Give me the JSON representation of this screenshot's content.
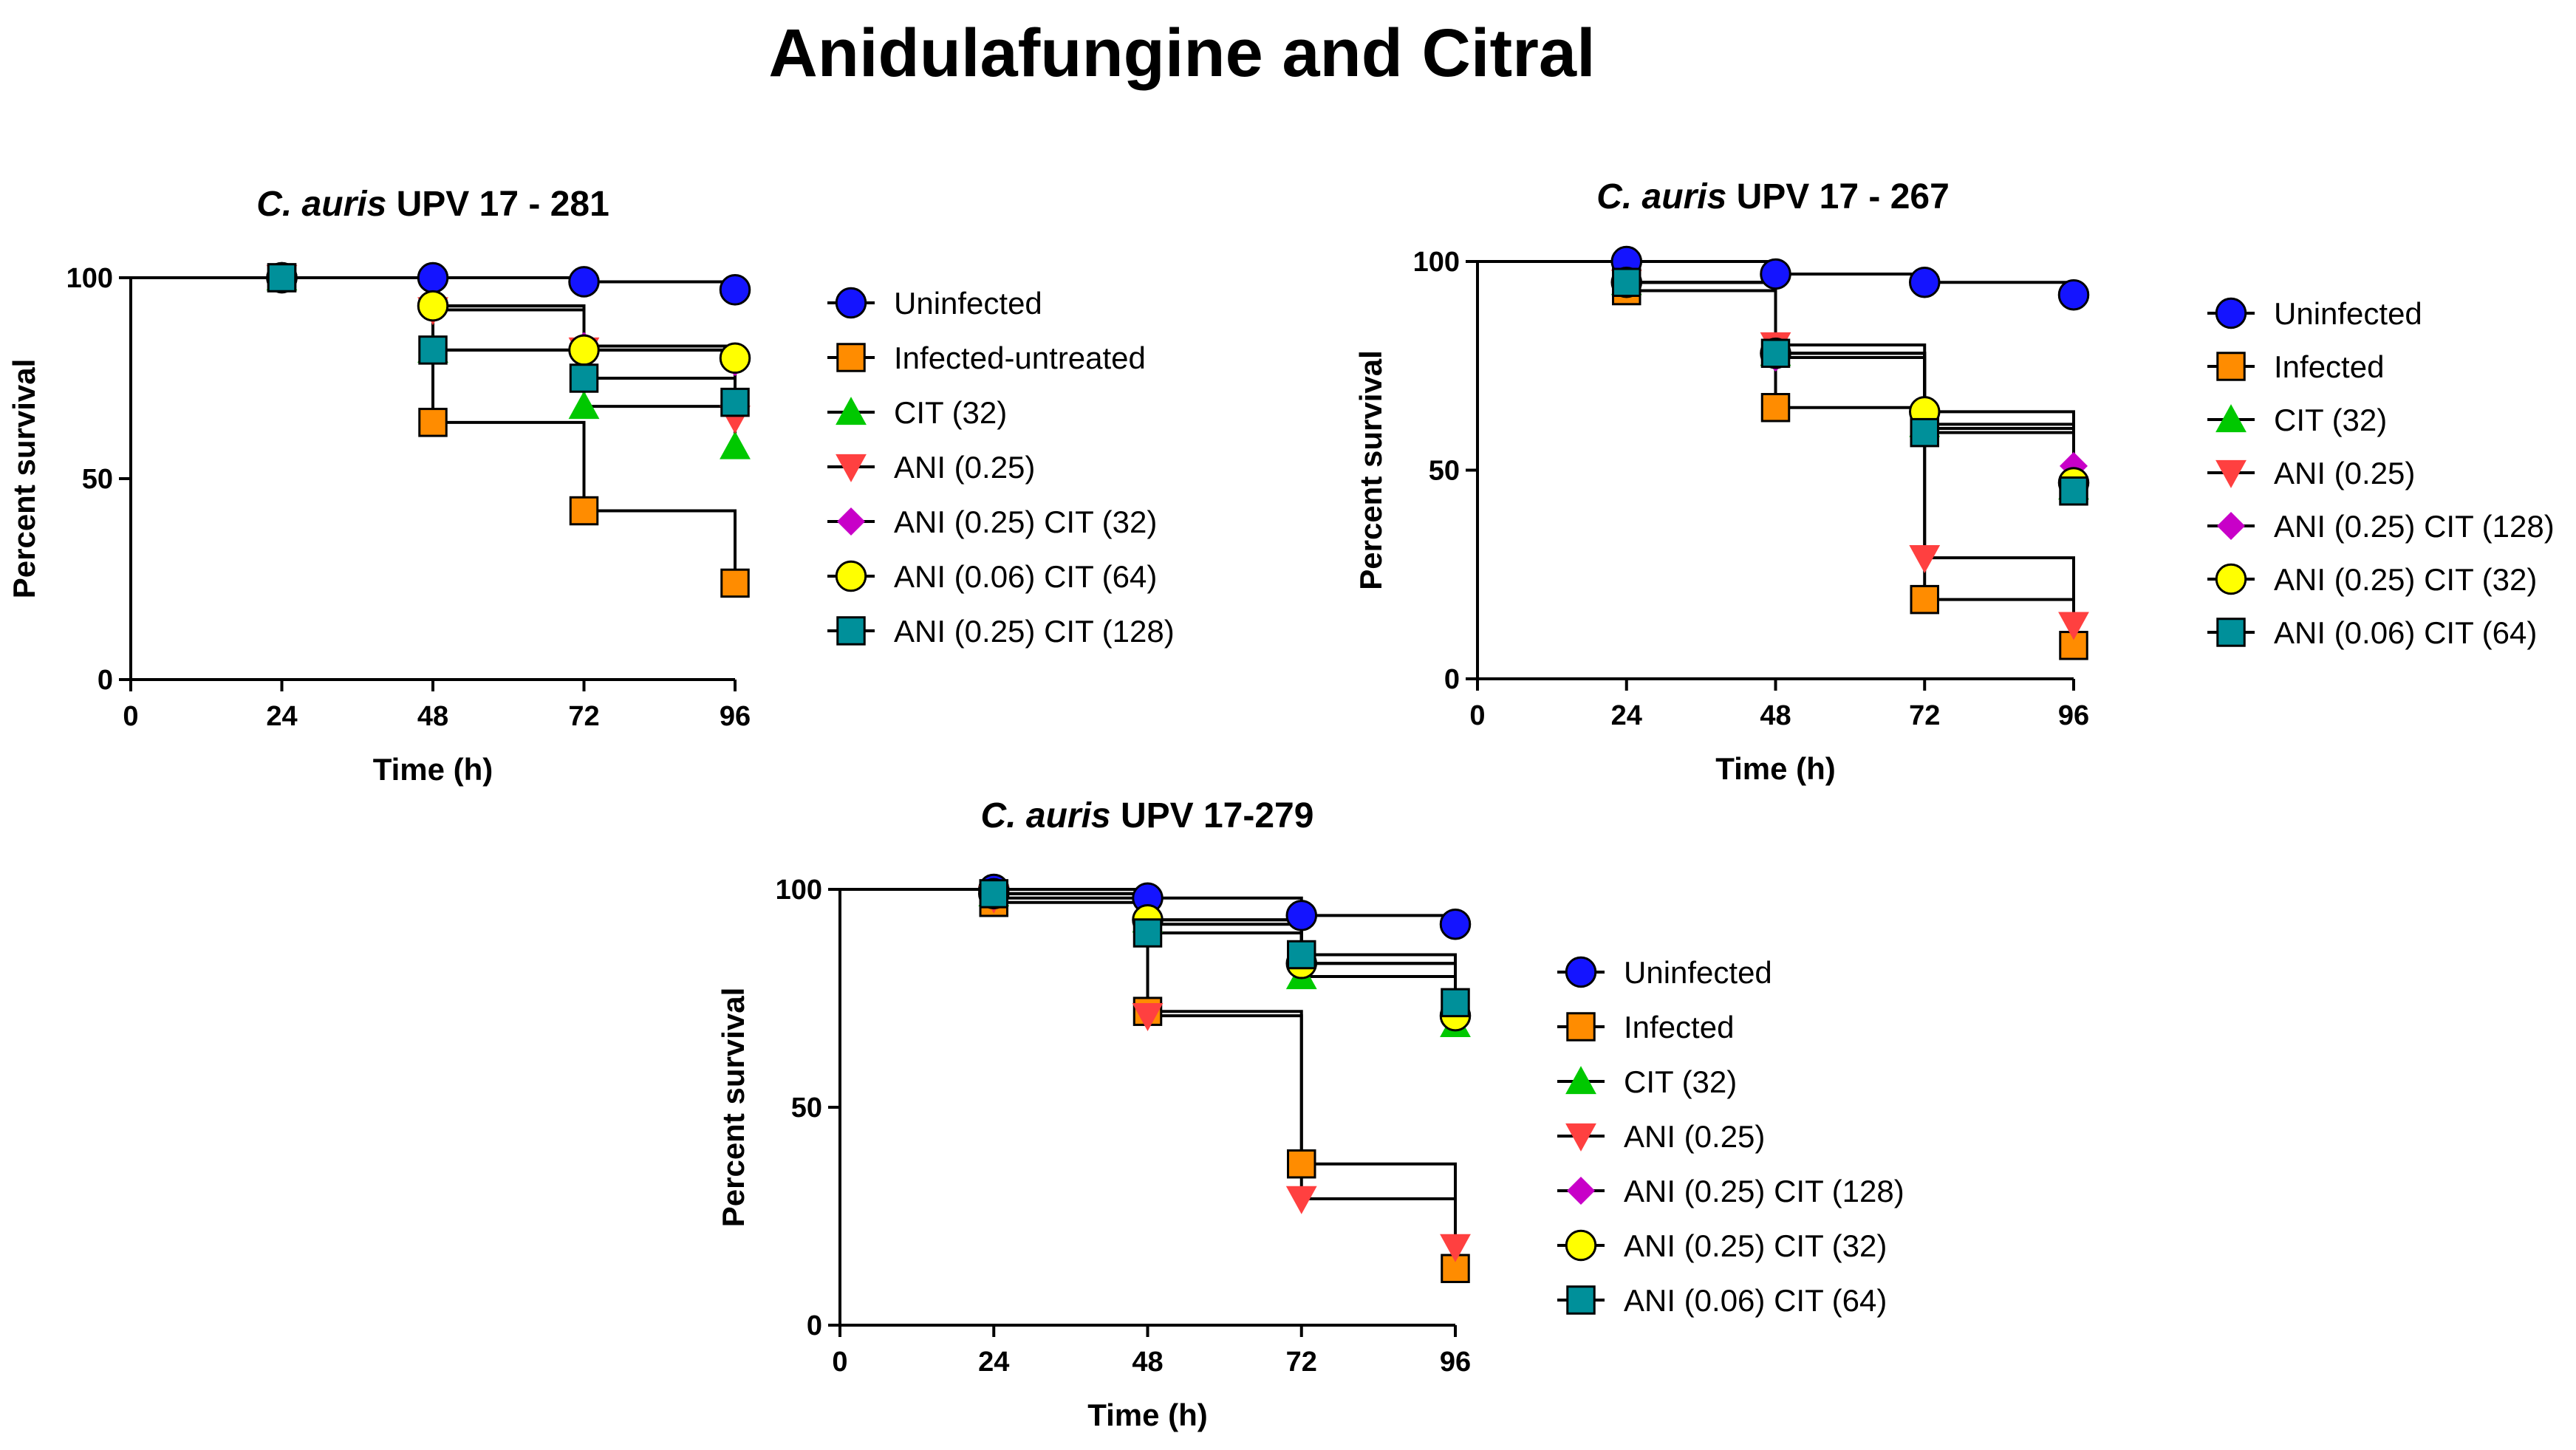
{
  "figure": {
    "title": "Anidulafungine and Citral"
  },
  "chart_data": [
    {
      "type": "line",
      "title_italic": "C. auris",
      "title_rest": " UPV 17 - 281",
      "xlabel": "Time (h)",
      "ylabel": "Percent survival",
      "xlim": [
        0,
        96
      ],
      "ylim": [
        0,
        100
      ],
      "xticks": [
        0,
        24,
        48,
        72,
        96
      ],
      "yticks": [
        0,
        50,
        100
      ],
      "x": [
        24,
        48,
        72,
        96
      ],
      "series": [
        {
          "name": "Uninfected",
          "color": "#1414ff",
          "marker": "circle",
          "values": [
            100,
            100,
            99,
            97
          ]
        },
        {
          "name": "Infected-untreated",
          "color": "#ff8c00",
          "marker": "square",
          "values": [
            100,
            64,
            42,
            24
          ]
        },
        {
          "name": "CIT (32)",
          "color": "#00c800",
          "marker": "triangle-up",
          "values": [
            100,
            82,
            68,
            58
          ]
        },
        {
          "name": "ANI (0.25)",
          "color": "#ff4040",
          "marker": "triangle-down",
          "values": [
            100,
            92,
            82,
            65
          ]
        },
        {
          "name": "ANI (0.25) CIT (32)",
          "color": "#c800c8",
          "marker": "diamond",
          "values": [
            100,
            93,
            83,
            79
          ]
        },
        {
          "name": "ANI (0.06) CIT (64)",
          "color": "#ffff00",
          "marker": "circle",
          "values": [
            100,
            93,
            82,
            80
          ]
        },
        {
          "name": "ANI (0.25) CIT (128)",
          "color": "#00909a",
          "marker": "square",
          "values": [
            100,
            82,
            75,
            69
          ]
        }
      ]
    },
    {
      "type": "line",
      "title_italic": "C. auris",
      "title_rest": " UPV 17 - 267",
      "xlabel": "Time (h)",
      "ylabel": "Percent survival",
      "xlim": [
        0,
        96
      ],
      "ylim": [
        0,
        100
      ],
      "xticks": [
        0,
        24,
        48,
        72,
        96
      ],
      "yticks": [
        0,
        50,
        100
      ],
      "x": [
        24,
        48,
        72,
        96
      ],
      "series": [
        {
          "name": "Uninfected",
          "color": "#1414ff",
          "marker": "circle",
          "values": [
            100,
            97,
            95,
            92
          ]
        },
        {
          "name": "Infected",
          "color": "#ff8c00",
          "marker": "square",
          "values": [
            93,
            65,
            19,
            8
          ]
        },
        {
          "name": "CIT (32)",
          "color": "#00c800",
          "marker": "triangle-up",
          "values": [
            95,
            78,
            61,
            46
          ]
        },
        {
          "name": "ANI (0.25)",
          "color": "#ff4040",
          "marker": "triangle-down",
          "values": [
            95,
            80,
            29,
            13
          ]
        },
        {
          "name": "ANI (0.25) CIT (128)",
          "color": "#c800c8",
          "marker": "diamond",
          "values": [
            95,
            77,
            60,
            51
          ]
        },
        {
          "name": "ANI (0.25) CIT (32)",
          "color": "#ffff00",
          "marker": "circle",
          "values": [
            95,
            78,
            64,
            47
          ]
        },
        {
          "name": "ANI (0.06) CIT (64)",
          "color": "#00909a",
          "marker": "square",
          "values": [
            95,
            78,
            59,
            45
          ]
        }
      ]
    },
    {
      "type": "line",
      "title_italic": "C. auris",
      "title_rest": " UPV 17-279",
      "xlabel": "Time (h)",
      "ylabel": "Percent survival",
      "xlim": [
        0,
        96
      ],
      "ylim": [
        0,
        100
      ],
      "xticks": [
        0,
        24,
        48,
        72,
        96
      ],
      "yticks": [
        0,
        50,
        100
      ],
      "x": [
        24,
        48,
        72,
        96
      ],
      "series": [
        {
          "name": "Uninfected",
          "color": "#1414ff",
          "marker": "circle",
          "values": [
            100,
            98,
            94,
            92
          ]
        },
        {
          "name": "Infected",
          "color": "#ff8c00",
          "marker": "square",
          "values": [
            97,
            72,
            37,
            13
          ]
        },
        {
          "name": "CIT (32)",
          "color": "#00c800",
          "marker": "triangle-up",
          "values": [
            99,
            93,
            80,
            69
          ]
        },
        {
          "name": "ANI (0.25)",
          "color": "#ff4040",
          "marker": "triangle-down",
          "values": [
            98,
            71,
            29,
            18
          ]
        },
        {
          "name": "ANI (0.25) CIT (128)",
          "color": "#c800c8",
          "marker": "diamond",
          "values": [
            99,
            92,
            83,
            72
          ]
        },
        {
          "name": "ANI (0.25) CIT (32)",
          "color": "#ffff00",
          "marker": "circle",
          "values": [
            99,
            93,
            83,
            71
          ]
        },
        {
          "name": "ANI (0.06) CIT (64)",
          "color": "#00909a",
          "marker": "square",
          "values": [
            99,
            90,
            85,
            74
          ]
        }
      ]
    }
  ]
}
